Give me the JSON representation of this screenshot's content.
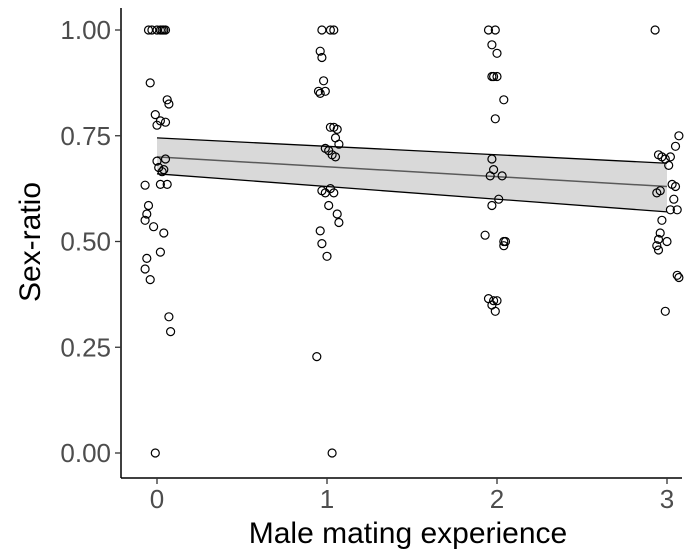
{
  "chart_data": {
    "type": "scatter",
    "title": "",
    "xlabel": "Male mating experience",
    "ylabel": "Sex-ratio",
    "xlim": [
      -0.2,
      3.1
    ],
    "ylim": [
      -0.05,
      1.05
    ],
    "x_ticks": [
      0,
      1,
      2,
      3
    ],
    "x_tick_labels": [
      "0",
      "1",
      "2",
      "3"
    ],
    "y_ticks": [
      0,
      0.25,
      0.5,
      0.75,
      1
    ],
    "y_tick_labels": [
      "0.00",
      "0.25",
      "0.50",
      "0.75",
      "1.00"
    ],
    "grid": false,
    "legend": "none",
    "point_style": {
      "shape": "open-circle",
      "stroke": "#000000"
    },
    "fit": {
      "type": "linear",
      "x_range": [
        0,
        3
      ],
      "fit_values": [
        0.7,
        0.63
      ],
      "ci_lower": [
        0.66,
        0.57
      ],
      "ci_upper": [
        0.745,
        0.685
      ],
      "line_color": "#5a5a5a",
      "band_color": "#d9d9d9"
    },
    "points": [
      [
        -0.05,
        1.0
      ],
      [
        -0.03,
        1.0
      ],
      [
        0.0,
        1.0
      ],
      [
        0.02,
        1.0
      ],
      [
        0.03,
        1.0
      ],
      [
        0.04,
        1.0
      ],
      [
        0.05,
        1.0
      ],
      [
        -0.04,
        0.875
      ],
      [
        0.06,
        0.835
      ],
      [
        0.07,
        0.825
      ],
      [
        -0.01,
        0.8
      ],
      [
        0.02,
        0.785
      ],
      [
        0.05,
        0.782
      ],
      [
        0.0,
        0.775
      ],
      [
        -0.07,
        0.633
      ],
      [
        -0.05,
        0.585
      ],
      [
        -0.06,
        0.565
      ],
      [
        -0.07,
        0.55
      ],
      [
        -0.02,
        0.535
      ],
      [
        0.0,
        0.69
      ],
      [
        0.01,
        0.675
      ],
      [
        0.03,
        0.665
      ],
      [
        0.05,
        0.695
      ],
      [
        0.04,
        0.67
      ],
      [
        0.02,
        0.635
      ],
      [
        0.06,
        0.635
      ],
      [
        0.04,
        0.52
      ],
      [
        0.02,
        0.475
      ],
      [
        -0.06,
        0.46
      ],
      [
        -0.07,
        0.435
      ],
      [
        -0.04,
        0.41
      ],
      [
        0.07,
        0.322
      ],
      [
        0.08,
        0.287
      ],
      [
        -0.01,
        0.0
      ],
      [
        0.97,
        1.0
      ],
      [
        1.02,
        1.0
      ],
      [
        1.04,
        1.0
      ],
      [
        0.96,
        0.95
      ],
      [
        0.97,
        0.935
      ],
      [
        0.98,
        0.88
      ],
      [
        0.99,
        0.855
      ],
      [
        0.95,
        0.855
      ],
      [
        0.96,
        0.85
      ],
      [
        1.02,
        0.77
      ],
      [
        1.04,
        0.77
      ],
      [
        1.06,
        0.765
      ],
      [
        1.05,
        0.745
      ],
      [
        1.07,
        0.73
      ],
      [
        0.99,
        0.72
      ],
      [
        1.01,
        0.715
      ],
      [
        1.03,
        0.705
      ],
      [
        1.05,
        0.7
      ],
      [
        0.97,
        0.62
      ],
      [
        0.99,
        0.615
      ],
      [
        1.02,
        0.625
      ],
      [
        1.04,
        0.615
      ],
      [
        1.01,
        0.585
      ],
      [
        1.06,
        0.565
      ],
      [
        1.07,
        0.545
      ],
      [
        0.96,
        0.525
      ],
      [
        0.97,
        0.495
      ],
      [
        1.0,
        0.465
      ],
      [
        0.94,
        0.228
      ],
      [
        1.03,
        0.0
      ],
      [
        1.95,
        1.0
      ],
      [
        1.99,
        1.0
      ],
      [
        1.97,
        0.965
      ],
      [
        2.0,
        0.945
      ],
      [
        1.97,
        0.89
      ],
      [
        1.98,
        0.89
      ],
      [
        2.0,
        0.89
      ],
      [
        2.04,
        0.835
      ],
      [
        1.99,
        0.79
      ],
      [
        1.97,
        0.695
      ],
      [
        1.98,
        0.67
      ],
      [
        1.96,
        0.655
      ],
      [
        2.01,
        0.6
      ],
      [
        2.03,
        0.655
      ],
      [
        1.97,
        0.585
      ],
      [
        1.93,
        0.515
      ],
      [
        2.04,
        0.5
      ],
      [
        2.05,
        0.5
      ],
      [
        2.04,
        0.49
      ],
      [
        1.95,
        0.365
      ],
      [
        1.98,
        0.36
      ],
      [
        2.0,
        0.36
      ],
      [
        1.97,
        0.35
      ],
      [
        1.99,
        0.335
      ],
      [
        2.93,
        1.0
      ],
      [
        3.07,
        0.75
      ],
      [
        3.05,
        0.725
      ],
      [
        2.95,
        0.705
      ],
      [
        2.97,
        0.7
      ],
      [
        2.99,
        0.695
      ],
      [
        3.02,
        0.7
      ],
      [
        3.01,
        0.68
      ],
      [
        2.96,
        0.62
      ],
      [
        2.94,
        0.615
      ],
      [
        3.03,
        0.635
      ],
      [
        3.05,
        0.63
      ],
      [
        3.04,
        0.6
      ],
      [
        3.06,
        0.575
      ],
      [
        3.02,
        0.575
      ],
      [
        2.97,
        0.55
      ],
      [
        2.96,
        0.52
      ],
      [
        2.95,
        0.505
      ],
      [
        2.94,
        0.49
      ],
      [
        3.0,
        0.5
      ],
      [
        2.95,
        0.48
      ],
      [
        3.06,
        0.42
      ],
      [
        3.07,
        0.415
      ],
      [
        2.99,
        0.335
      ]
    ]
  }
}
